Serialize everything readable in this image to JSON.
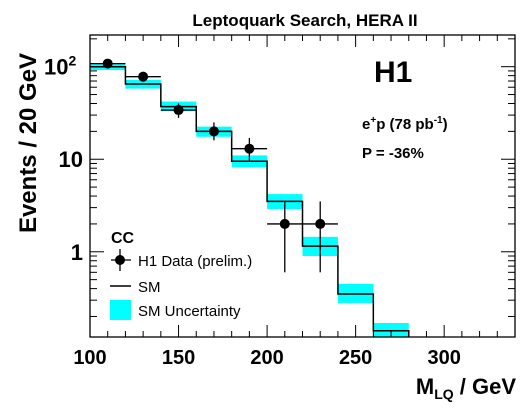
{
  "chart_data": {
    "type": "histogram",
    "title": "Leptoquark Search, HERA II",
    "xlabel_main": "M",
    "xlabel_sub": "LQ",
    "xlabel_unit": " / GeV",
    "ylabel": "Events / 20 GeV",
    "xlim": [
      100,
      340
    ],
    "ylim": [
      0.12,
      220
    ],
    "yscale": "log",
    "x_ticks": [
      100,
      150,
      200,
      250,
      300
    ],
    "y_ticks": [
      {
        "value": 1,
        "label": "1"
      },
      {
        "value": 10,
        "label": "10"
      },
      {
        "value": 100,
        "label": "10",
        "exp": "2"
      }
    ],
    "bins": [
      100,
      120,
      140,
      160,
      180,
      200,
      220,
      240,
      260,
      280
    ],
    "sm": [
      100,
      65,
      37,
      20,
      9.5,
      3.5,
      1.15,
      0.35,
      0.14
    ],
    "sm_err": [
      [
        92,
        108
      ],
      [
        58,
        72
      ],
      [
        33,
        42
      ],
      [
        17.5,
        22.5
      ],
      [
        8.2,
        11
      ],
      [
        2.9,
        4.2
      ],
      [
        0.9,
        1.45
      ],
      [
        0.28,
        0.45
      ],
      [
        0.115,
        0.17
      ]
    ],
    "data_points": [
      {
        "x": 110,
        "y": 108,
        "ylo": 97,
        "yhi": 119
      },
      {
        "x": 130,
        "y": 78,
        "ylo": 69,
        "yhi": 87
      },
      {
        "x": 150,
        "y": 34,
        "ylo": 28,
        "yhi": 40
      },
      {
        "x": 170,
        "y": 20,
        "ylo": 16,
        "yhi": 25
      },
      {
        "x": 190,
        "y": 13,
        "ylo": 9.5,
        "yhi": 17
      },
      {
        "x": 210,
        "y": 2,
        "ylo": 0.6,
        "yhi": 3.5
      },
      {
        "x": 230,
        "y": 2,
        "ylo": 0.6,
        "yhi": 3.5
      }
    ],
    "experiment": "H1",
    "beam_main": "e",
    "beam_sup": "+",
    "beam_rest": "p (78 pb",
    "lumi_sup": "-1",
    "lumi_close": ")",
    "polarization": "P = -36%",
    "legend_title": "CC",
    "legend": [
      {
        "label": "H1 Data (prelim.)",
        "kind": "marker"
      },
      {
        "label": "SM",
        "kind": "line"
      },
      {
        "label": "SM Uncertainty",
        "kind": "box"
      }
    ],
    "colors": {
      "uncertainty": "#00ffff",
      "line": "#000000"
    }
  }
}
